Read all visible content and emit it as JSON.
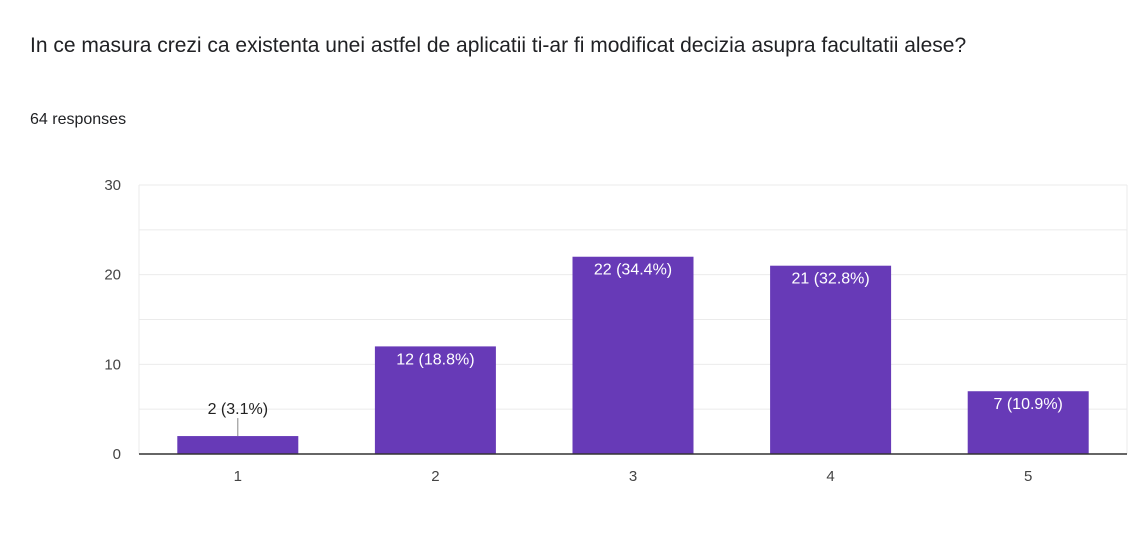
{
  "question": {
    "title": "In ce masura crezi ca existenta unei astfel de aplicatii ti-ar fi modificat decizia asupra facultatii alese?",
    "responses": "64 responses"
  },
  "colors": {
    "bar": "#673ab7",
    "grid": "#ebebeb",
    "axis": "#333333"
  },
  "chart_data": {
    "type": "bar",
    "categories": [
      "1",
      "2",
      "3",
      "4",
      "5"
    ],
    "values": [
      2,
      12,
      22,
      21,
      7
    ],
    "data_labels": [
      "2 (3.1%)",
      "12 (18.8%)",
      "22 (34.4%)",
      "21 (32.8%)",
      "7 (10.9%)"
    ],
    "ylim": [
      0,
      30
    ],
    "yticks": [
      0,
      10,
      20,
      30
    ],
    "grid": true,
    "title": "",
    "xlabel": "",
    "ylabel": ""
  }
}
